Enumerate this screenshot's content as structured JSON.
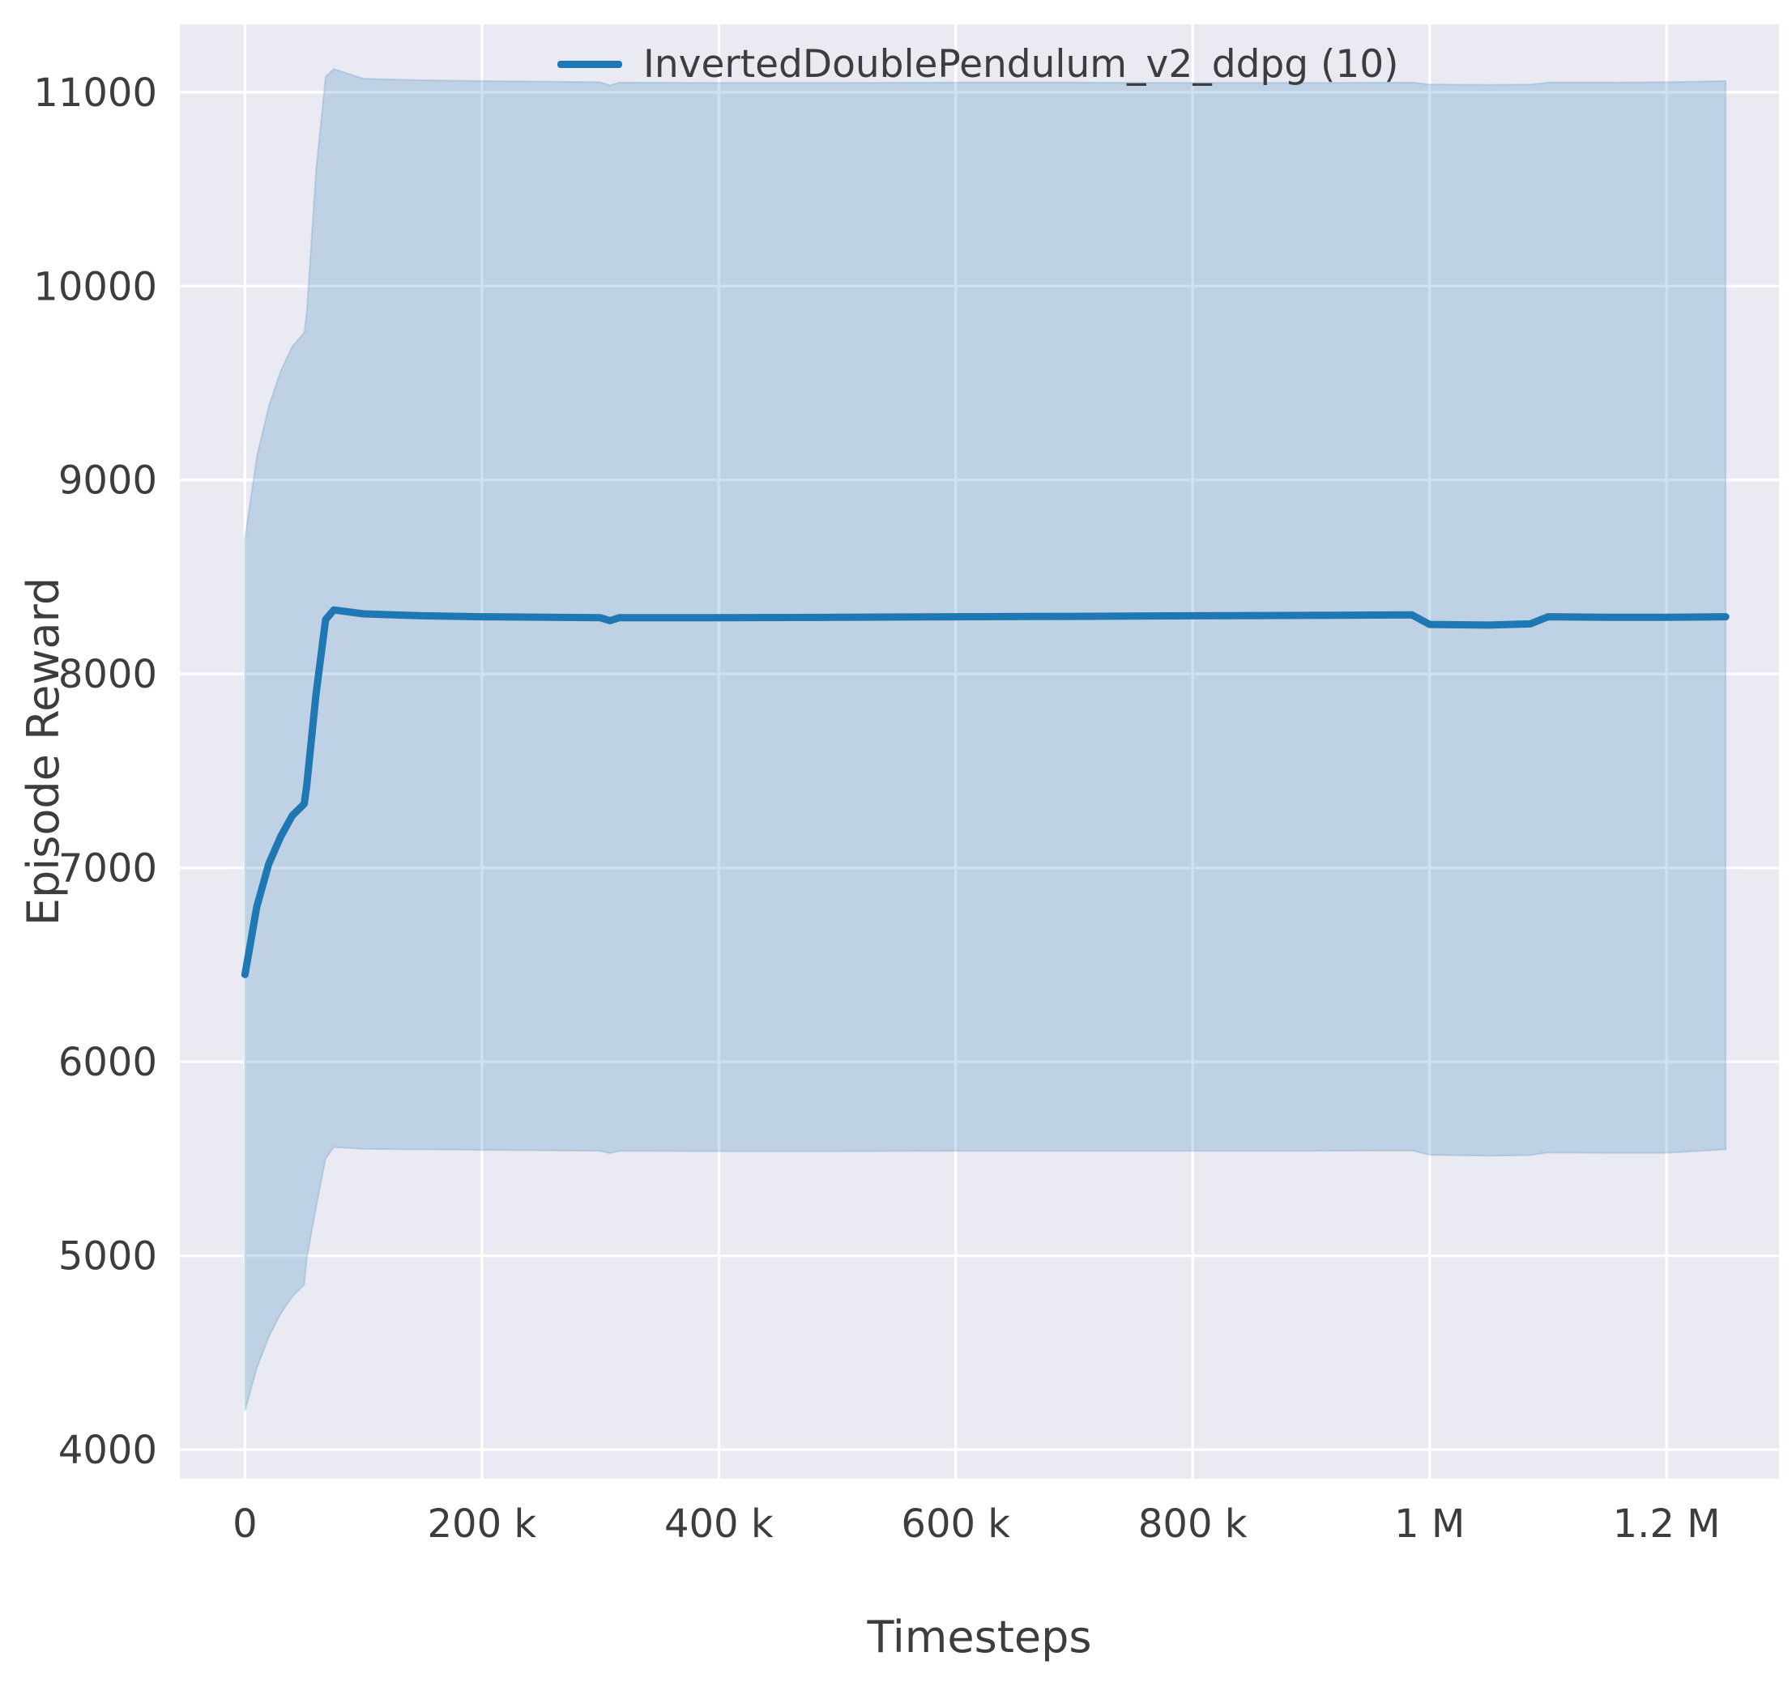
{
  "figure": {
    "background": "#ffffff",
    "axes_background": "#eaeaf2",
    "grid_color": "#ffffff",
    "text_color": "#3d3d3d"
  },
  "legend": {
    "label": "InvertedDoublePendulum_v2_ddpg (10)",
    "line_color": "#1f77b4"
  },
  "chart_data": {
    "type": "line",
    "title": "",
    "xlabel": "Timesteps",
    "ylabel": "Episode Reward",
    "grid": true,
    "legend_position": "upper center-right",
    "xlim": [
      -55000,
      1295000
    ],
    "ylim": [
      3850,
      11350
    ],
    "x_ticks": [
      {
        "v": 0,
        "label": "0"
      },
      {
        "v": 200000,
        "label": "200 k"
      },
      {
        "v": 400000,
        "label": "400 k"
      },
      {
        "v": 600000,
        "label": "600 k"
      },
      {
        "v": 800000,
        "label": "800 k"
      },
      {
        "v": 1000000,
        "label": "1 M"
      },
      {
        "v": 1200000,
        "label": "1.2 M"
      }
    ],
    "y_ticks": [
      {
        "v": 4000,
        "label": "4000"
      },
      {
        "v": 5000,
        "label": "5000"
      },
      {
        "v": 6000,
        "label": "6000"
      },
      {
        "v": 7000,
        "label": "7000"
      },
      {
        "v": 8000,
        "label": "8000"
      },
      {
        "v": 9000,
        "label": "9000"
      },
      {
        "v": 10000,
        "label": "10000"
      },
      {
        "v": 11000,
        "label": "11000"
      }
    ],
    "series": [
      {
        "name": "InvertedDoublePendulum_v2_ddpg (10)",
        "color": "#1f77b4",
        "band_fill": "#1f77b4",
        "band_opacity": 0.21,
        "x": [
          0,
          10000,
          20000,
          30000,
          40000,
          50000,
          52000,
          60000,
          68000,
          75000,
          100000,
          150000,
          200000,
          300000,
          308000,
          316000,
          400000,
          500000,
          600000,
          700000,
          800000,
          900000,
          985000,
          1000000,
          1050000,
          1085000,
          1100000,
          1150000,
          1200000,
          1250000
        ],
        "mean": [
          6450,
          6800,
          7020,
          7160,
          7270,
          7330,
          7420,
          7900,
          8280,
          8330,
          8310,
          8300,
          8295,
          8290,
          8275,
          8290,
          8290,
          8292,
          8295,
          8297,
          8300,
          8302,
          8305,
          8255,
          8252,
          8258,
          8295,
          8292,
          8292,
          8295
        ],
        "lower": [
          4200,
          4420,
          4580,
          4700,
          4790,
          4850,
          4980,
          5250,
          5500,
          5560,
          5550,
          5548,
          5545,
          5540,
          5528,
          5540,
          5538,
          5538,
          5540,
          5540,
          5540,
          5540,
          5542,
          5520,
          5515,
          5518,
          5532,
          5530,
          5530,
          5548
        ],
        "upper": [
          8700,
          9120,
          9380,
          9560,
          9690,
          9760,
          9860,
          10600,
          11080,
          11120,
          11070,
          11062,
          11058,
          11052,
          11035,
          11050,
          11048,
          11048,
          11050,
          11050,
          11048,
          11048,
          11050,
          11040,
          11038,
          11040,
          11050,
          11050,
          11052,
          11058
        ]
      }
    ]
  }
}
